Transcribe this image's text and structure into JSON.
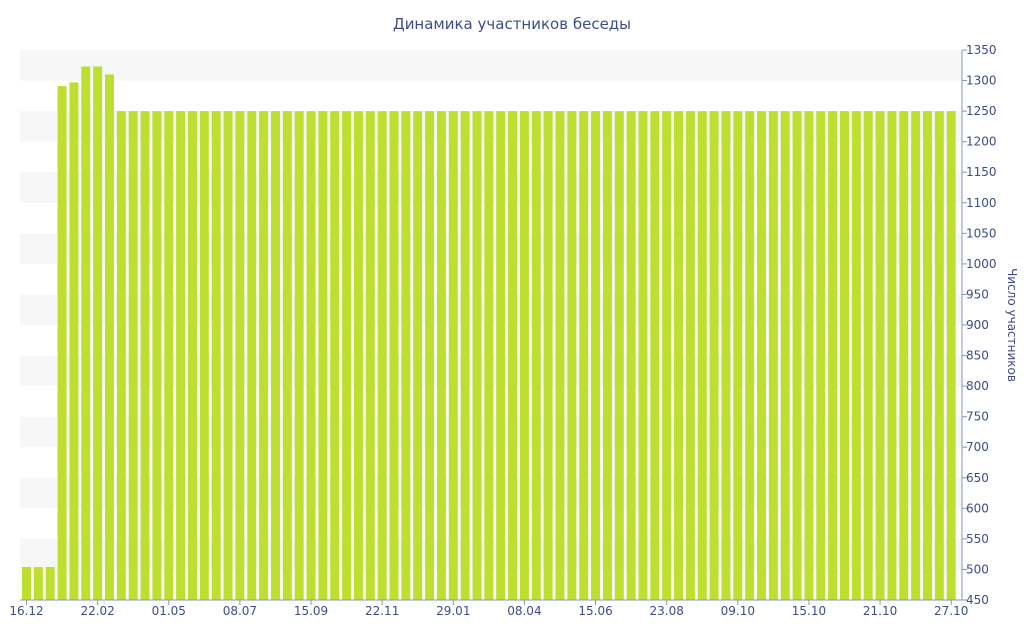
{
  "chart_data": {
    "type": "bar",
    "title": "Динамика участников беседы",
    "xlabel": "",
    "ylabel": "Число участников",
    "ylim": [
      450,
      1350
    ],
    "y_ticks": [
      450,
      500,
      550,
      600,
      650,
      700,
      750,
      800,
      850,
      900,
      950,
      1000,
      1050,
      1100,
      1150,
      1200,
      1250,
      1300,
      1350
    ],
    "x_tick_labels": [
      "16.12",
      "22.02",
      "01.05",
      "08.07",
      "15.09",
      "22.11",
      "29.01",
      "08.04",
      "15.06",
      "23.08",
      "09.10",
      "15.10",
      "21.10",
      "27.10"
    ],
    "x_tick_bar_index": [
      0,
      6,
      12,
      18,
      24,
      30,
      36,
      42,
      48,
      54,
      60,
      66,
      72,
      78
    ],
    "grid": "horizontal alternating bands",
    "legend": "none",
    "colors": {
      "bar": "#bedf2f",
      "text": "#3d4c8a",
      "band": "#f7f7f7"
    },
    "values": [
      504,
      504,
      504,
      1291,
      1297,
      1323,
      1323,
      1310,
      1250,
      1250,
      1250,
      1250,
      1250,
      1250,
      1250,
      1250,
      1250,
      1250,
      1250,
      1250,
      1250,
      1250,
      1250,
      1250,
      1250,
      1250,
      1250,
      1250,
      1250,
      1250,
      1250,
      1250,
      1250,
      1250,
      1250,
      1250,
      1250,
      1250,
      1250,
      1250,
      1250,
      1250,
      1250,
      1250,
      1250,
      1250,
      1250,
      1250,
      1250,
      1250,
      1250,
      1250,
      1250,
      1250,
      1250,
      1250,
      1250,
      1250,
      1250,
      1250,
      1250,
      1250,
      1250,
      1250,
      1250,
      1250,
      1250,
      1250,
      1250,
      1250,
      1250,
      1250,
      1250,
      1250,
      1250,
      1250,
      1250,
      1250,
      1250
    ]
  }
}
